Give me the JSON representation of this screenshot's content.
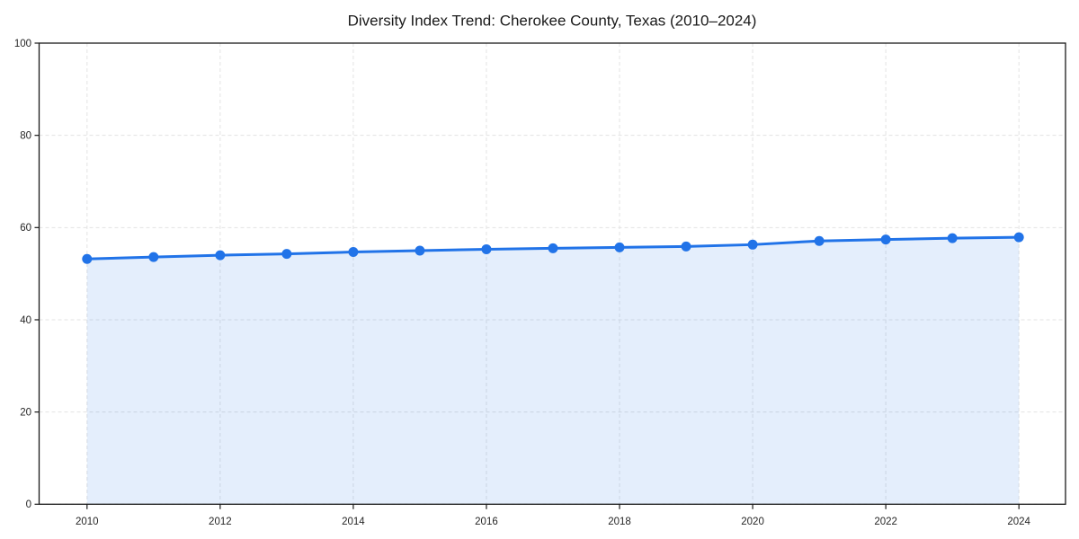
{
  "chart_data": {
    "type": "line",
    "title": "Diversity Index Trend: Cherokee County, Texas (2010–2024)",
    "x": [
      2010,
      2011,
      2012,
      2013,
      2014,
      2015,
      2016,
      2017,
      2018,
      2019,
      2020,
      2021,
      2022,
      2023,
      2024
    ],
    "values": [
      53.2,
      53.6,
      54.0,
      54.3,
      54.7,
      55.0,
      55.3,
      55.5,
      55.7,
      55.9,
      56.3,
      57.1,
      57.4,
      57.7,
      57.9
    ],
    "xlabel": "",
    "ylabel": "",
    "xlim": [
      2009.28,
      2024.7
    ],
    "ylim": [
      0,
      100
    ],
    "xticks": [
      2010,
      2012,
      2014,
      2016,
      2018,
      2020,
      2022,
      2024
    ],
    "yticks": [
      0,
      20,
      40,
      60,
      80,
      100
    ],
    "grid": true,
    "grid_style": "dashed",
    "legend": false,
    "area_fill": true,
    "line_color": "#2173e8",
    "fill_color": "rgba(33, 115, 232, 0.12)",
    "marker": "circle",
    "marker_radius": 5.5,
    "line_width": 3
  }
}
